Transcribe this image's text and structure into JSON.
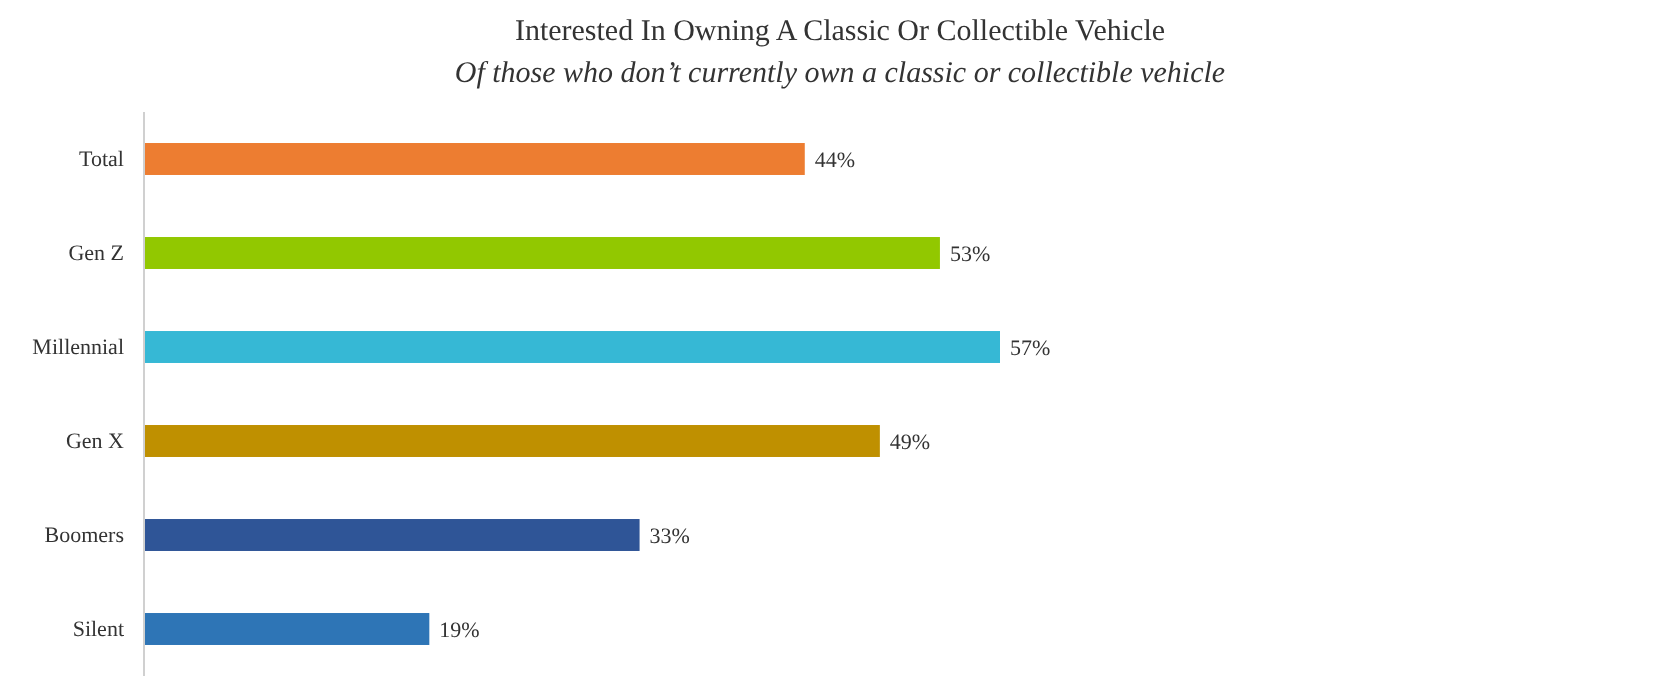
{
  "chart_data": {
    "type": "bar",
    "orientation": "horizontal",
    "title": "Interested In Owning A Classic Or Collectible Vehicle",
    "subtitle": "Of those who don’t currently own a classic or collectible vehicle",
    "categories": [
      "Total",
      "Gen Z",
      "Millennial",
      "Gen X",
      "Boomers",
      "Silent"
    ],
    "values": [
      44,
      53,
      57,
      49,
      33,
      19
    ],
    "colors": [
      "#ed7d31",
      "#92c800",
      "#36b8d5",
      "#bf9000",
      "#2f5597",
      "#2e75b6"
    ],
    "value_labels": [
      "44%",
      "53%",
      "57%",
      "49%",
      "33%",
      "19%"
    ]
  }
}
